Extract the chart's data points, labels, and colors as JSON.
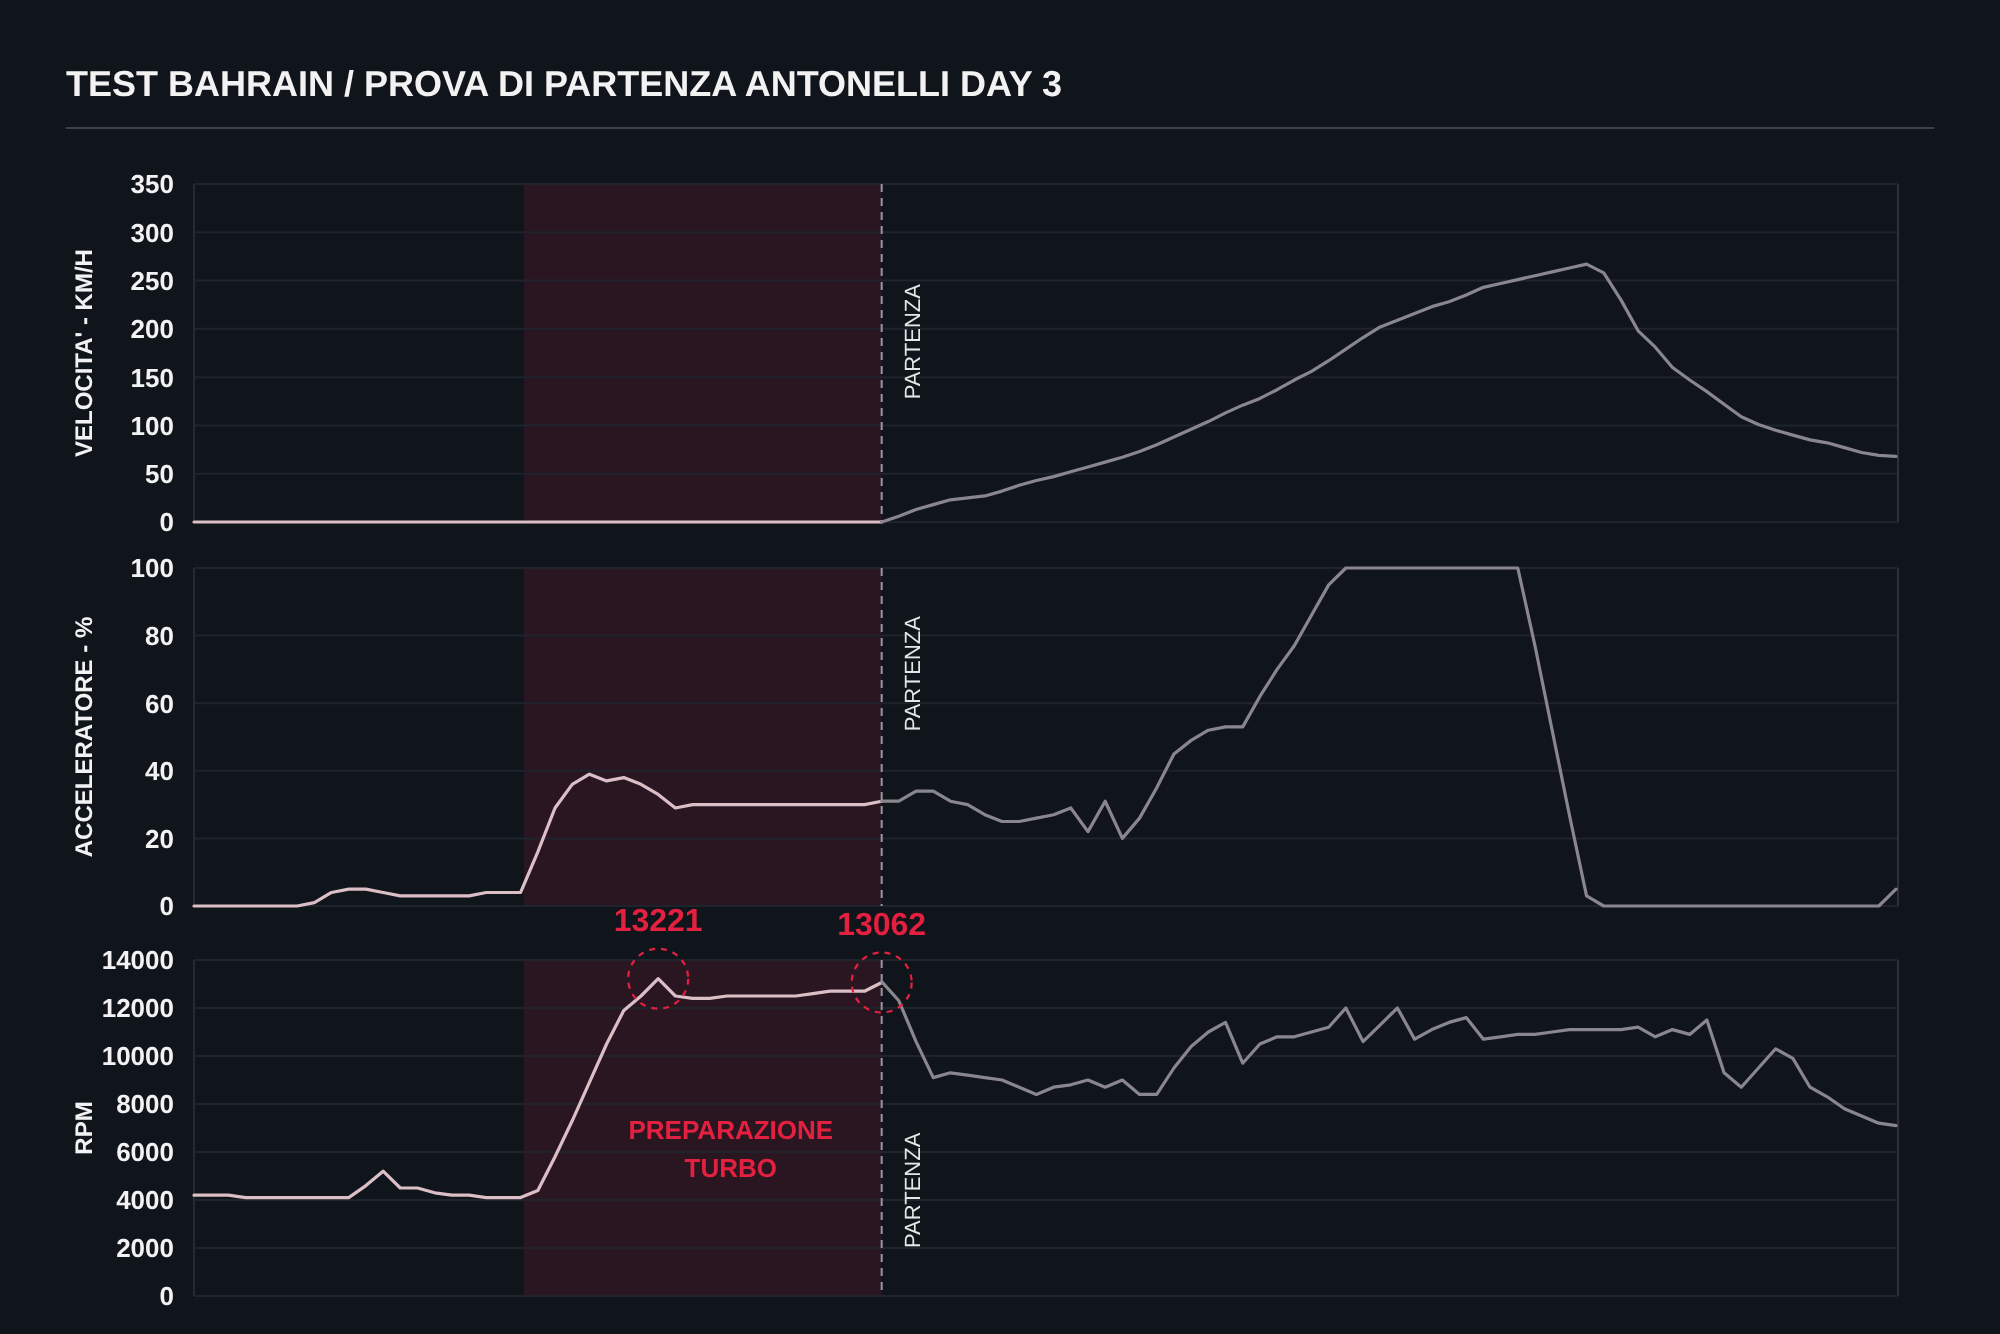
{
  "chart_data": [
    {
      "type": "line",
      "title": "TEST BAHRAIN / PROVA DI PARTENZA ANTONELLI DAY 3",
      "ylabel": "VELOCITA' - KM/H",
      "categories": [
        null,
        null,
        null,
        null,
        null,
        null,
        null,
        null,
        null,
        null,
        null,
        null,
        null,
        null,
        null,
        null,
        null,
        null,
        null,
        null,
        null,
        null,
        null,
        null,
        null,
        null,
        null,
        null,
        null,
        null,
        null,
        null,
        null,
        null,
        null,
        null,
        null,
        null,
        null,
        null,
        null,
        null,
        null,
        null,
        null,
        null,
        null,
        null,
        null,
        null,
        null,
        null,
        null,
        null,
        null,
        null,
        null,
        null,
        null,
        null,
        null,
        null,
        null,
        null,
        null,
        null,
        null,
        null,
        null,
        null,
        null,
        null,
        null,
        null,
        null,
        null,
        null,
        null,
        null,
        null,
        null,
        null,
        null,
        null,
        null,
        null,
        null,
        null,
        null,
        null,
        null,
        null,
        null,
        null,
        null,
        null,
        null,
        null,
        null,
        null
      ],
      "series": [
        {
          "color": "#dcbfc6",
          "values": [
            0,
            0,
            0,
            0,
            0,
            0,
            0,
            0,
            0,
            0,
            0,
            0,
            0,
            0,
            0,
            0,
            0,
            0,
            0,
            0,
            0,
            0,
            0,
            0,
            0,
            0,
            0,
            0,
            0,
            0,
            0,
            0,
            0,
            0,
            0,
            0,
            0,
            0,
            0,
            0,
            0,
            null,
            null,
            null,
            null,
            null,
            null,
            null,
            null,
            null,
            null,
            null,
            null,
            null,
            null,
            null,
            null,
            null,
            null,
            null,
            null,
            null,
            null,
            null,
            null,
            null,
            null,
            null,
            null,
            null,
            null,
            null,
            null,
            null,
            null,
            null,
            null,
            null,
            null,
            null,
            null,
            null,
            null,
            null,
            null,
            null,
            null,
            null,
            null,
            null,
            null,
            null,
            null,
            null,
            null,
            null,
            null,
            null,
            null,
            null
          ]
        },
        {
          "color": "#8a8690",
          "values": [
            null,
            null,
            null,
            null,
            null,
            null,
            null,
            null,
            null,
            null,
            null,
            null,
            null,
            null,
            null,
            null,
            null,
            null,
            null,
            null,
            null,
            null,
            null,
            null,
            null,
            null,
            null,
            null,
            null,
            null,
            null,
            null,
            null,
            null,
            null,
            null,
            null,
            null,
            null,
            null,
            0,
            6,
            13,
            18,
            23,
            25,
            27,
            32,
            38,
            43,
            47,
            52,
            57,
            62,
            67,
            73,
            80,
            88,
            96,
            104,
            113,
            121,
            128,
            137,
            147,
            156,
            167,
            179,
            191,
            202,
            209,
            216,
            223,
            228,
            235,
            243,
            247,
            251,
            255,
            259,
            263,
            267,
            258,
            230,
            198,
            181,
            160,
            147,
            135,
            122,
            109,
            101,
            95,
            90,
            85,
            82,
            77,
            72,
            69,
            68
          ]
        }
      ],
      "ylim": [
        0,
        350
      ],
      "yticks": [
        0,
        50,
        100,
        150,
        200,
        250,
        300,
        350
      ],
      "grid": "y",
      "annotations": [
        "PARTENZA"
      ]
    },
    {
      "type": "line",
      "ylabel": "ACCELERATORE - %",
      "categories": [
        null,
        null,
        null,
        null,
        null,
        null,
        null,
        null,
        null,
        null,
        null,
        null,
        null,
        null,
        null,
        null,
        null,
        null,
        null,
        null,
        null,
        null,
        null,
        null,
        null,
        null,
        null,
        null,
        null,
        null,
        null,
        null,
        null,
        null,
        null,
        null,
        null,
        null,
        null,
        null,
        null,
        null,
        null,
        null,
        null,
        null,
        null,
        null,
        null,
        null,
        null,
        null,
        null,
        null,
        null,
        null,
        null,
        null,
        null,
        null,
        null,
        null,
        null,
        null,
        null,
        null,
        null,
        null,
        null,
        null,
        null,
        null,
        null,
        null,
        null,
        null,
        null,
        null,
        null,
        null,
        null,
        null,
        null,
        null,
        null,
        null,
        null,
        null,
        null,
        null,
        null,
        null,
        null,
        null,
        null,
        null,
        null,
        null,
        null,
        null
      ],
      "series": [
        {
          "color": "#dcbfc6",
          "values": [
            0,
            0,
            0,
            0,
            0,
            0,
            0,
            1,
            4,
            5,
            5,
            4,
            3,
            3,
            3,
            3,
            3,
            4,
            4,
            4,
            16,
            29,
            36,
            39,
            37,
            38,
            36,
            33,
            29,
            30,
            30,
            30,
            30,
            30,
            30,
            30,
            30,
            30,
            30,
            30,
            31,
            null,
            null,
            null,
            null,
            null,
            null,
            null,
            null,
            null,
            null,
            null,
            null,
            null,
            null,
            null,
            null,
            null,
            null,
            null,
            null,
            null,
            null,
            null,
            null,
            null,
            null,
            null,
            null,
            null,
            null,
            null,
            null,
            null,
            null,
            null,
            null,
            null,
            null,
            null,
            null,
            null,
            null,
            null,
            null,
            null,
            null,
            null,
            null,
            null,
            null,
            null,
            null,
            null,
            null,
            null,
            null,
            null,
            null,
            null
          ]
        },
        {
          "color": "#8a8690",
          "values": [
            null,
            null,
            null,
            null,
            null,
            null,
            null,
            null,
            null,
            null,
            null,
            null,
            null,
            null,
            null,
            null,
            null,
            null,
            null,
            null,
            null,
            null,
            null,
            null,
            null,
            null,
            null,
            null,
            null,
            null,
            null,
            null,
            null,
            null,
            null,
            null,
            null,
            null,
            null,
            null,
            31,
            31,
            34,
            34,
            31,
            30,
            27,
            25,
            25,
            26,
            27,
            29,
            22,
            31,
            20,
            26,
            35,
            45,
            49,
            52,
            53,
            53,
            62,
            70,
            77,
            86,
            95,
            100,
            100,
            100,
            100,
            100,
            100,
            100,
            100,
            100,
            100,
            100,
            77,
            52,
            27,
            3,
            0,
            0,
            0,
            0,
            0,
            0,
            0,
            0,
            0,
            0,
            0,
            0,
            0,
            0,
            0,
            0,
            0,
            5
          ]
        }
      ],
      "ylim": [
        0,
        100
      ],
      "yticks": [
        0,
        20,
        40,
        60,
        80,
        100
      ],
      "grid": "y",
      "annotations": [
        "PARTENZA"
      ]
    },
    {
      "type": "line",
      "ylabel": "RPM",
      "categories": [
        null,
        null,
        null,
        null,
        null,
        null,
        null,
        null,
        null,
        null,
        null,
        null,
        null,
        null,
        null,
        null,
        null,
        null,
        null,
        null,
        null,
        null,
        null,
        null,
        null,
        null,
        null,
        null,
        null,
        null,
        null,
        null,
        null,
        null,
        null,
        null,
        null,
        null,
        null,
        null,
        null,
        null,
        null,
        null,
        null,
        null,
        null,
        null,
        null,
        null,
        null,
        null,
        null,
        null,
        null,
        null,
        null,
        null,
        null,
        null,
        null,
        null,
        null,
        null,
        null,
        null,
        null,
        null,
        null,
        null,
        null,
        null,
        null,
        null,
        null,
        null,
        null,
        null,
        null,
        null,
        null,
        null,
        null,
        null,
        null,
        null,
        null,
        null,
        null,
        null,
        null,
        null,
        null,
        null,
        null,
        null,
        null,
        null,
        null,
        null
      ],
      "series": [
        {
          "color": "#dcbfc6",
          "values": [
            4200,
            4200,
            4200,
            4100,
            4100,
            4100,
            4100,
            4100,
            4100,
            4100,
            4600,
            5200,
            4500,
            4500,
            4300,
            4200,
            4200,
            4100,
            4100,
            4100,
            4400,
            5800,
            7300,
            8900,
            10500,
            11900,
            12500,
            13221,
            12500,
            12400,
            12400,
            12500,
            12500,
            12500,
            12500,
            12500,
            12600,
            12700,
            12700,
            12700,
            13062,
            null,
            null,
            null,
            null,
            null,
            null,
            null,
            null,
            null,
            null,
            null,
            null,
            null,
            null,
            null,
            null,
            null,
            null,
            null,
            null,
            null,
            null,
            null,
            null,
            null,
            null,
            null,
            null,
            null,
            null,
            null,
            null,
            null,
            null,
            null,
            null,
            null,
            null,
            null,
            null,
            null,
            null,
            null,
            null,
            null,
            null,
            null,
            null,
            null,
            null,
            null,
            null,
            null,
            null,
            null,
            null,
            null,
            null,
            null
          ],
          "value_labels": [
            null,
            null,
            null,
            null,
            null,
            null,
            null,
            null,
            null,
            null,
            null,
            null,
            null,
            null,
            null,
            null,
            null,
            null,
            null,
            null,
            null,
            null,
            null,
            null,
            null,
            null,
            null,
            "13221",
            null,
            null,
            null,
            null,
            null,
            null,
            null,
            null,
            null,
            null,
            null,
            null,
            "13062",
            null,
            null,
            null,
            null,
            null,
            null,
            null,
            null,
            null,
            null,
            null,
            null,
            null,
            null,
            null,
            null,
            null,
            null,
            null,
            null,
            null,
            null,
            null,
            null,
            null,
            null,
            null,
            null,
            null,
            null,
            null,
            null,
            null,
            null,
            null,
            null,
            null,
            null,
            null,
            null,
            null,
            null,
            null,
            null,
            null,
            null,
            null,
            null,
            null,
            null,
            null,
            null,
            null,
            null,
            null,
            null,
            null,
            null,
            null
          ]
        },
        {
          "color": "#8a8690",
          "values": [
            null,
            null,
            null,
            null,
            null,
            null,
            null,
            null,
            null,
            null,
            null,
            null,
            null,
            null,
            null,
            null,
            null,
            null,
            null,
            null,
            null,
            null,
            null,
            null,
            null,
            null,
            null,
            null,
            null,
            null,
            null,
            null,
            null,
            null,
            null,
            null,
            null,
            null,
            null,
            null,
            13100,
            12300,
            10600,
            9100,
            9300,
            9200,
            9100,
            9000,
            8700,
            8400,
            8700,
            8800,
            9000,
            8700,
            9000,
            8400,
            8400,
            9500,
            10400,
            11000,
            11400,
            9700,
            10500,
            10800,
            10800,
            11000,
            11200,
            12000,
            10600,
            11300,
            12000,
            10700,
            11100,
            11400,
            11600,
            10700,
            10800,
            10900,
            10900,
            11000,
            11100,
            11100,
            11100,
            11100,
            11200,
            10800,
            11100,
            10900,
            11500,
            9300,
            8700,
            9500,
            10300,
            9900,
            8700,
            8300,
            7800,
            7500,
            7200,
            7100
          ]
        }
      ],
      "ylim": [
        0,
        14000
      ],
      "yticks": [
        0,
        2000,
        4000,
        6000,
        8000,
        10000,
        12000,
        14000
      ],
      "grid": "y",
      "annotations": [
        "PARTENZA",
        "PREPARAZIONE TURBO"
      ]
    }
  ]
}
